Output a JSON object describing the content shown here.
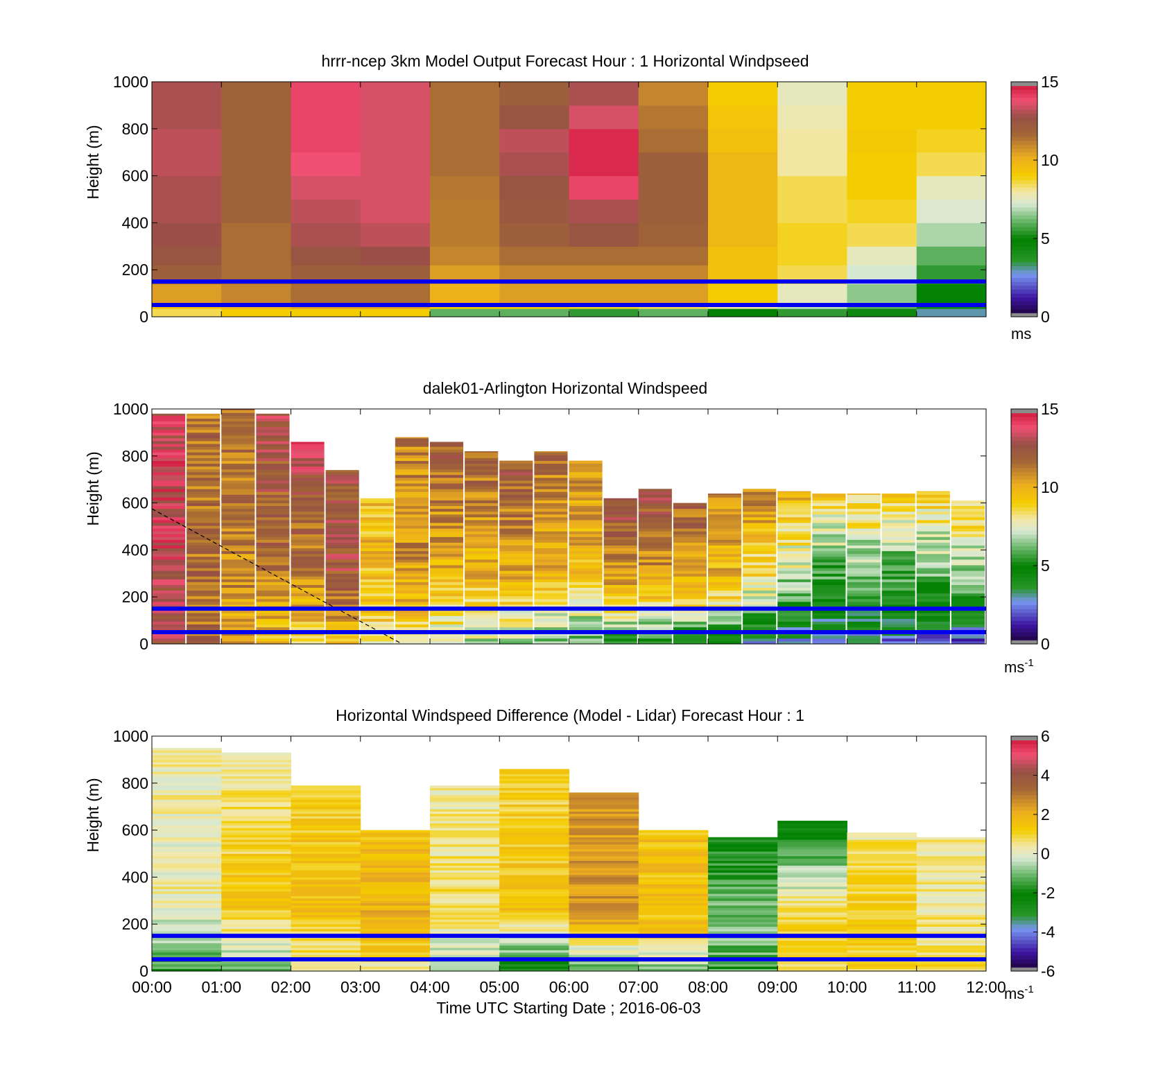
{
  "colors": {
    "overlay_lines": "#0000ee",
    "dashed_line": "#000000",
    "axis": "#000000",
    "background": "#ffffff"
  },
  "xlabel": "Time UTC  Starting Date ; 2016-06-03",
  "x_ticks": [
    "00:00",
    "01:00",
    "02:00",
    "03:00",
    "04:00",
    "05:00",
    "06:00",
    "07:00",
    "08:00",
    "09:00",
    "10:00",
    "11:00",
    "12:00"
  ],
  "chart_data": [
    {
      "type": "heatmap",
      "title": "hrrr-ncep 3km Model Output   Forecast Hour : 1 Horizontal Windpseed",
      "ylabel": "Height (m)",
      "xlim": [
        0,
        12
      ],
      "ylim": [
        0,
        1000
      ],
      "y_ticks": [
        "0",
        "200",
        "400",
        "600",
        "800",
        "1000"
      ],
      "colorbar": {
        "ticks": [
          "0",
          "5",
          "10",
          "15"
        ],
        "range": [
          0,
          15
        ],
        "unit": "ms",
        "unit_sup": ""
      },
      "overlay_heights_m": [
        150,
        50
      ],
      "hours": [
        0,
        1,
        2,
        3,
        4,
        5,
        6,
        7,
        8,
        9,
        10,
        11
      ],
      "heights_m": [
        20,
        45,
        100,
        180,
        260,
        350,
        450,
        550,
        650,
        750,
        850,
        950
      ],
      "values": [
        [
          8.5,
          9.5,
          10.5,
          12.0,
          12.5,
          12.8,
          13.0,
          13.0,
          13.2,
          13.2,
          13.0,
          13.0
        ],
        [
          9.0,
          10.0,
          11.0,
          11.5,
          11.5,
          11.5,
          11.8,
          11.8,
          11.8,
          11.8,
          11.8,
          11.8
        ],
        [
          9.0,
          10.5,
          11.5,
          12.0,
          12.5,
          13.0,
          13.2,
          13.5,
          13.8,
          14.0,
          14.0,
          14.0
        ],
        [
          9.0,
          10.5,
          11.5,
          12.0,
          12.8,
          13.2,
          13.5,
          13.5,
          13.5,
          13.5,
          13.5,
          13.5
        ],
        [
          6.0,
          9.0,
          10.0,
          10.5,
          11.0,
          11.2,
          11.2,
          11.3,
          11.5,
          11.5,
          11.5,
          11.5
        ],
        [
          6.0,
          9.2,
          10.5,
          11.0,
          11.5,
          12.0,
          12.3,
          12.5,
          13.0,
          13.2,
          12.5,
          12.0
        ],
        [
          5.5,
          8.8,
          10.5,
          11.0,
          11.5,
          12.5,
          13.0,
          14.0,
          14.5,
          14.5,
          13.5,
          13.0
        ],
        [
          6.0,
          8.5,
          10.5,
          11.0,
          11.5,
          11.8,
          12.0,
          12.0,
          12.0,
          11.5,
          11.3,
          11.0
        ],
        [
          5.0,
          8.0,
          9.0,
          9.5,
          9.5,
          9.8,
          9.8,
          9.8,
          9.8,
          9.5,
          9.3,
          9.0
        ],
        [
          5.5,
          7.0,
          7.6,
          8.5,
          8.8,
          8.8,
          8.5,
          8.5,
          8.0,
          8.0,
          7.8,
          7.6
        ],
        [
          4.5,
          6.0,
          6.5,
          7.2,
          7.6,
          8.5,
          8.8,
          9.0,
          9.0,
          9.2,
          9.0,
          9.0
        ],
        [
          3.0,
          4.5,
          5.0,
          5.5,
          6.0,
          6.8,
          7.3,
          7.6,
          8.5,
          8.8,
          9.0,
          9.0
        ]
      ]
    },
    {
      "type": "heatmap",
      "title": "dalek01-Arlington  Horizontal Windspeed",
      "ylabel": "Height (m)",
      "xlim": [
        0,
        12
      ],
      "ylim": [
        0,
        1000
      ],
      "y_ticks": [
        "0",
        "200",
        "400",
        "600",
        "800",
        "1000"
      ],
      "colorbar": {
        "ticks": [
          "0",
          "5",
          "10",
          "15"
        ],
        "range": [
          0,
          15
        ],
        "unit": "ms",
        "unit_sup": "-1"
      },
      "overlay_heights_m": [
        150,
        50
      ],
      "dashed_line": {
        "x": [
          0,
          3.6
        ],
        "y": [
          575,
          0
        ]
      },
      "hours": [
        0.25,
        0.75,
        1.25,
        1.75,
        2.25,
        2.75,
        3.25,
        3.75,
        4.25,
        4.75,
        5.25,
        5.75,
        6.25,
        6.75,
        7.25,
        7.75,
        8.25,
        8.75,
        9.25,
        9.75,
        10.25,
        10.75,
        11.25,
        11.75
      ],
      "top_heights_m": [
        980,
        980,
        1000,
        980,
        860,
        740,
        620,
        880,
        860,
        820,
        780,
        820,
        780,
        620,
        660,
        600,
        640,
        660,
        650,
        640,
        640,
        640,
        650,
        610
      ],
      "low_speed_m_s": [
        12.5,
        11.5,
        10.0,
        9.5,
        9.0,
        9.0,
        8.5,
        8.5,
        7.5,
        7.0,
        6.5,
        6.0,
        5.5,
        5.5,
        5.0,
        4.8,
        3.5,
        3.0,
        3.0,
        2.5,
        2.5,
        2.5,
        2.0,
        2.0
      ],
      "mid_speed_m_s": [
        13.5,
        11.5,
        11.0,
        11.5,
        11.0,
        12.5,
        9.5,
        10.5,
        10.0,
        9.8,
        10.0,
        10.0,
        9.5,
        10.0,
        10.0,
        9.8,
        9.5,
        8.0,
        6.5,
        5.0,
        5.5,
        5.0,
        5.5,
        6.0
      ],
      "top_speed_m_s": [
        13.5,
        11.5,
        11.5,
        13.0,
        13.5,
        12.5,
        9.5,
        11.0,
        12.0,
        12.0,
        12.5,
        11.5,
        11.0,
        13.0,
        13.0,
        12.0,
        11.0,
        11.0,
        10.0,
        9.0,
        9.0,
        9.0,
        9.0,
        9.0
      ]
    },
    {
      "type": "heatmap",
      "title": "Horizontal Windspeed Difference (Model - Lidar) Forecast Hour : 1",
      "ylabel": "Height (m)",
      "xlim": [
        0,
        12
      ],
      "ylim": [
        0,
        1000
      ],
      "y_ticks": [
        "0",
        "200",
        "400",
        "600",
        "800",
        "1000"
      ],
      "colorbar": {
        "ticks": [
          "-6",
          "-4",
          "-2",
          "0",
          "2",
          "4",
          "6"
        ],
        "range": [
          -6,
          6
        ],
        "unit": "ms",
        "unit_sup": "-1"
      },
      "overlay_heights_m": [
        150,
        50
      ],
      "hours": [
        0.5,
        1.5,
        2.5,
        3.5,
        4.5,
        5.5,
        6.5,
        7.5,
        8.5,
        9.5,
        10.5,
        11.5
      ],
      "top_heights_m": [
        950,
        930,
        790,
        600,
        790,
        860,
        760,
        600,
        570,
        640,
        590,
        570
      ],
      "low_diff_m_s": [
        -1.5,
        -1.0,
        0.2,
        0.3,
        -0.8,
        -2.0,
        -1.5,
        -1.0,
        -1.5,
        1.0,
        1.0,
        0.8
      ],
      "mid_diff_m_s": [
        0.3,
        1.5,
        1.5,
        2.0,
        0.8,
        1.5,
        2.5,
        1.5,
        -0.8,
        1.2,
        1.5,
        0.5
      ],
      "top_diff_m_s": [
        0.2,
        0.2,
        1.2,
        1.5,
        0.3,
        1.0,
        2.5,
        1.5,
        -2.0,
        -2.5,
        0.5,
        0.3
      ]
    }
  ]
}
